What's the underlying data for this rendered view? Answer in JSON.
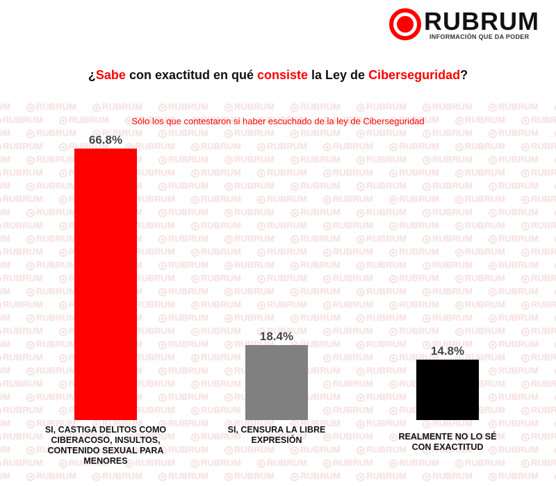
{
  "logo": {
    "name": "RUBRUM",
    "tagline": "INFORMACIÓN QUE DA PODER",
    "color": "#ff0000"
  },
  "watermark": "RUBRUM",
  "chart_data": {
    "type": "bar",
    "title_parts": [
      {
        "text": "¿",
        "red": false
      },
      {
        "text": "Sabe",
        "red": true
      },
      {
        "text": " con exactitud en qué ",
        "red": false
      },
      {
        "text": "consiste",
        "red": true
      },
      {
        "text": " la Ley de ",
        "red": false
      },
      {
        "text": "Ciberseguridad",
        "red": true
      },
      {
        "text": "?",
        "red": false
      }
    ],
    "subtitle": "Sólo los que contestaron si haber escuchado de la ley de Ciberseguridad",
    "categories": [
      "SI, CASTIGA DELITOS COMO CIBERACOSO, INSULTOS, CONTENIDO SEXUAL PARA MENORES",
      "SI, CENSURA LA LIBRE EXPRESIÓN",
      "REALMENTE NO LO SÉ CON EXACTITUD"
    ],
    "values": [
      66.8,
      18.4,
      14.8
    ],
    "value_labels": [
      "66.8%",
      "18.4%",
      "14.8%"
    ],
    "colors": [
      "#ff0000",
      "#808080",
      "#000000"
    ],
    "ylim": [
      0,
      66.8
    ],
    "grid": false,
    "unit": "%"
  }
}
